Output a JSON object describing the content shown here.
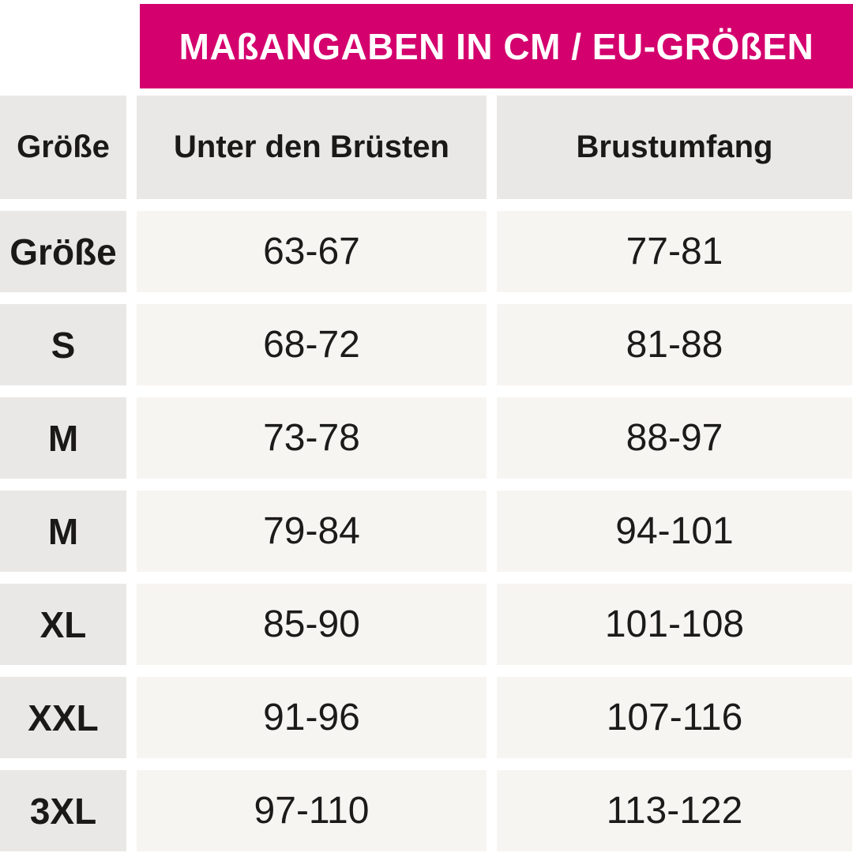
{
  "banner": {
    "title": "MAßANGABEN IN CM / EU-GRÖßEN"
  },
  "chart_data": {
    "type": "table",
    "title": "MAßANGABEN IN CM / EU-GRÖßEN",
    "units": "cm",
    "columns": [
      "Größe",
      "Unter den Brüsten",
      "Brustumfang"
    ],
    "rows": [
      [
        "Größe",
        "63-67",
        "77-81"
      ],
      [
        "S",
        "68-72",
        "81-88"
      ],
      [
        "M",
        "73-78",
        "88-97"
      ],
      [
        "M",
        "79-84",
        "94-101"
      ],
      [
        "XL",
        "85-90",
        "101-108"
      ],
      [
        "XXL",
        "91-96",
        "107-116"
      ],
      [
        "3XL",
        "97-110",
        "113-122"
      ]
    ]
  },
  "colors": {
    "accent": "#d4006e",
    "banner_text": "#ffffff",
    "header_cell_bg": "#eae8e6",
    "value_cell_bg": "#f7f5f2",
    "text": "#1a1918"
  }
}
